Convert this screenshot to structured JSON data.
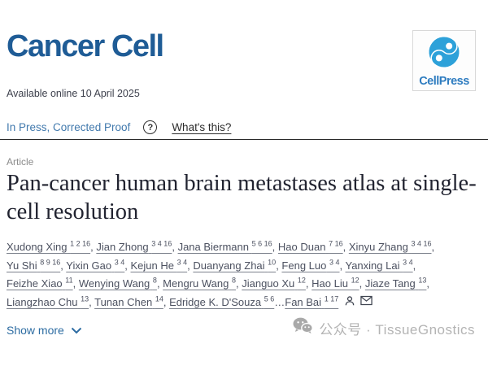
{
  "header": {
    "journal_title": "Cancer Cell",
    "logo_text": "CellPress",
    "available_online": "Available online 10 April 2025",
    "in_press_status": "In Press, Corrected Proof",
    "whats_this_label": "What's this?"
  },
  "icons": {
    "help_glyph": "?",
    "cellpress_blue": "#2da1d9",
    "wechat_gray": "#a9a9a9"
  },
  "article": {
    "type_label": "Article",
    "title": "Pan-cancer human brain metastases atlas at single-cell resolution",
    "author_lines": [
      [
        {
          "name": "Xudong Xing",
          "sup": "1 2 16",
          "sep": ", "
        },
        {
          "name": "Jian Zhong",
          "sup": "3 4 16",
          "sep": ", "
        },
        {
          "name": "Jana Biermann",
          "sup": "5 6 16",
          "sep": ", "
        },
        {
          "name": "Hao Duan",
          "sup": "7 16",
          "sep": ", "
        },
        {
          "name": "Xinyu Zhang",
          "sup": "3 4 16",
          "sep": ","
        }
      ],
      [
        {
          "name": "Yu Shi",
          "sup": "8 9 16",
          "sep": ", "
        },
        {
          "name": "Yixin Gao",
          "sup": "3 4",
          "sep": ", "
        },
        {
          "name": "Kejun He",
          "sup": "3 4",
          "sep": ", "
        },
        {
          "name": "Duanyang Zhai",
          "sup": "10",
          "sep": ", "
        },
        {
          "name": "Feng Luo",
          "sup": "3 4",
          "sep": ", "
        },
        {
          "name": "Yanxing Lai",
          "sup": "3 4",
          "sep": ","
        }
      ],
      [
        {
          "name": "Feizhe Xiao",
          "sup": "11",
          "sep": ", "
        },
        {
          "name": "Wenying Wang",
          "sup": "8",
          "sep": ", "
        },
        {
          "name": "Mengru Wang",
          "sup": "8",
          "sep": ", "
        },
        {
          "name": "Jianguo Xu",
          "sup": "12",
          "sep": ", "
        },
        {
          "name": "Hao Liu",
          "sup": "12",
          "sep": ", "
        },
        {
          "name": "Jiaze Tang",
          "sup": "13",
          "sep": ","
        }
      ],
      [
        {
          "name": "Liangzhao Chu",
          "sup": "13",
          "sep": ", "
        },
        {
          "name": "Tunan Chen",
          "sup": "14",
          "sep": ", "
        },
        {
          "name": "Edridge K. D'Souza",
          "sup": "5 6",
          "sep": "…"
        },
        {
          "name": "Fan Bai",
          "sup": "1 17",
          "sep": ""
        }
      ]
    ],
    "show_more_label": "Show more"
  },
  "watermark": {
    "text": "公众号 · TissueGnostics"
  },
  "colors": {
    "journal_blue": "#1f5c96",
    "in_press_blue": "#4179ad",
    "link_blue": "#2d6ca2",
    "author_gray": "#4c5160",
    "watermark_gray": "#b4b4b4"
  }
}
